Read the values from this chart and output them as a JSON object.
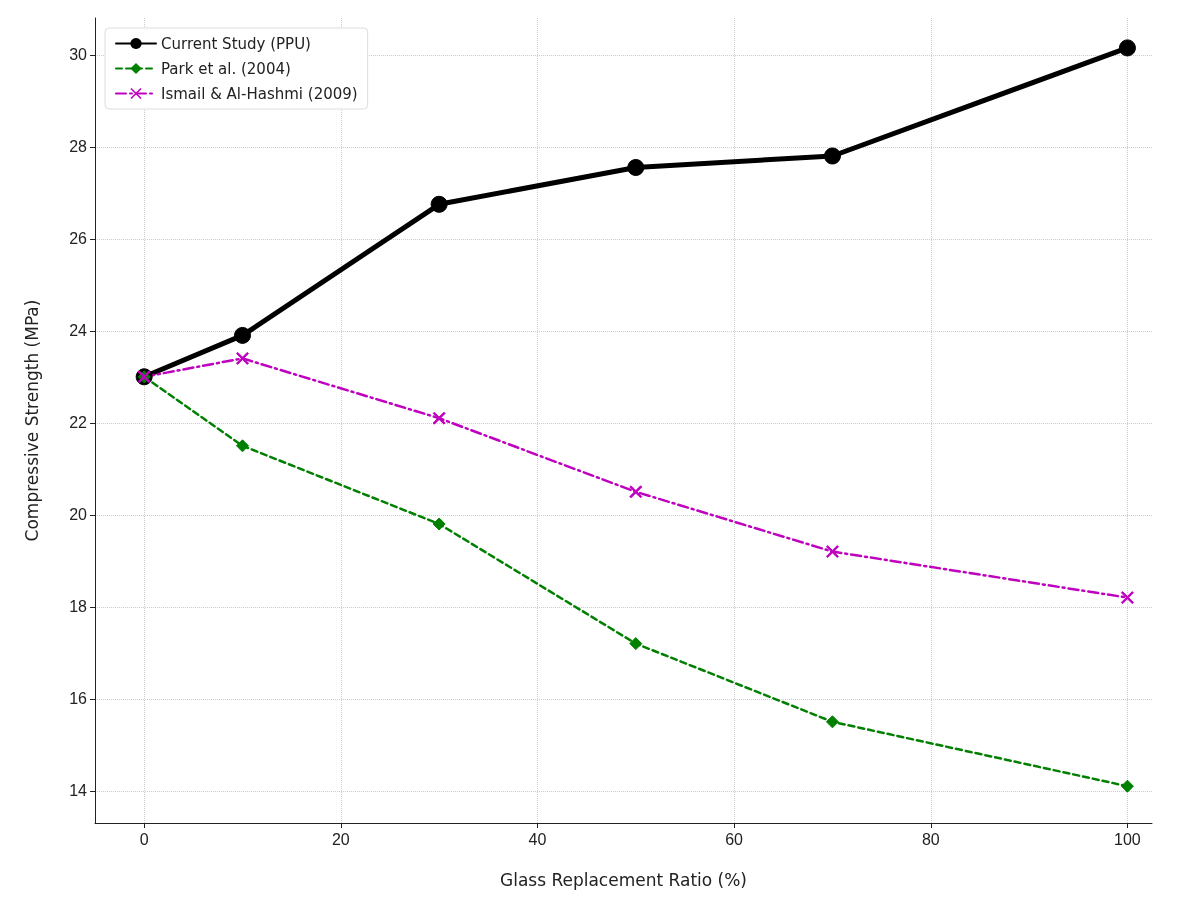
{
  "chart_data": {
    "type": "line",
    "xlabel": "Glass Replacement Ratio (%)",
    "ylabel": "Compressive Strength (MPa)",
    "x": [
      0,
      10,
      30,
      50,
      70,
      100
    ],
    "series": [
      {
        "name": "Current Study (PPU)",
        "color": "#000000",
        "values": [
          23.0,
          23.9,
          26.75,
          27.55,
          27.8,
          30.15
        ],
        "marker": "circle",
        "line_style": "solid"
      },
      {
        "name": "Park et al. (2004)",
        "color": "#008000",
        "values": [
          23.0,
          21.5,
          19.8,
          17.2,
          15.5,
          14.1
        ],
        "marker": "diamond",
        "line_style": "dashed"
      },
      {
        "name": "Ismail & Al-Hashmi (2009)",
        "color": "#bf00bf",
        "values": [
          23.0,
          23.4,
          22.1,
          20.5,
          19.2,
          18.2
        ],
        "marker": "cross",
        "line_style": "dashdot"
      }
    ],
    "xlim": [
      -5,
      102.5
    ],
    "xticks": [
      0,
      20,
      40,
      60,
      80,
      100
    ],
    "ylim": [
      13.3,
      30.8
    ],
    "yticks": [
      14,
      16,
      18,
      20,
      22,
      24,
      26,
      28,
      30
    ],
    "grid": true,
    "legend": "top left"
  }
}
